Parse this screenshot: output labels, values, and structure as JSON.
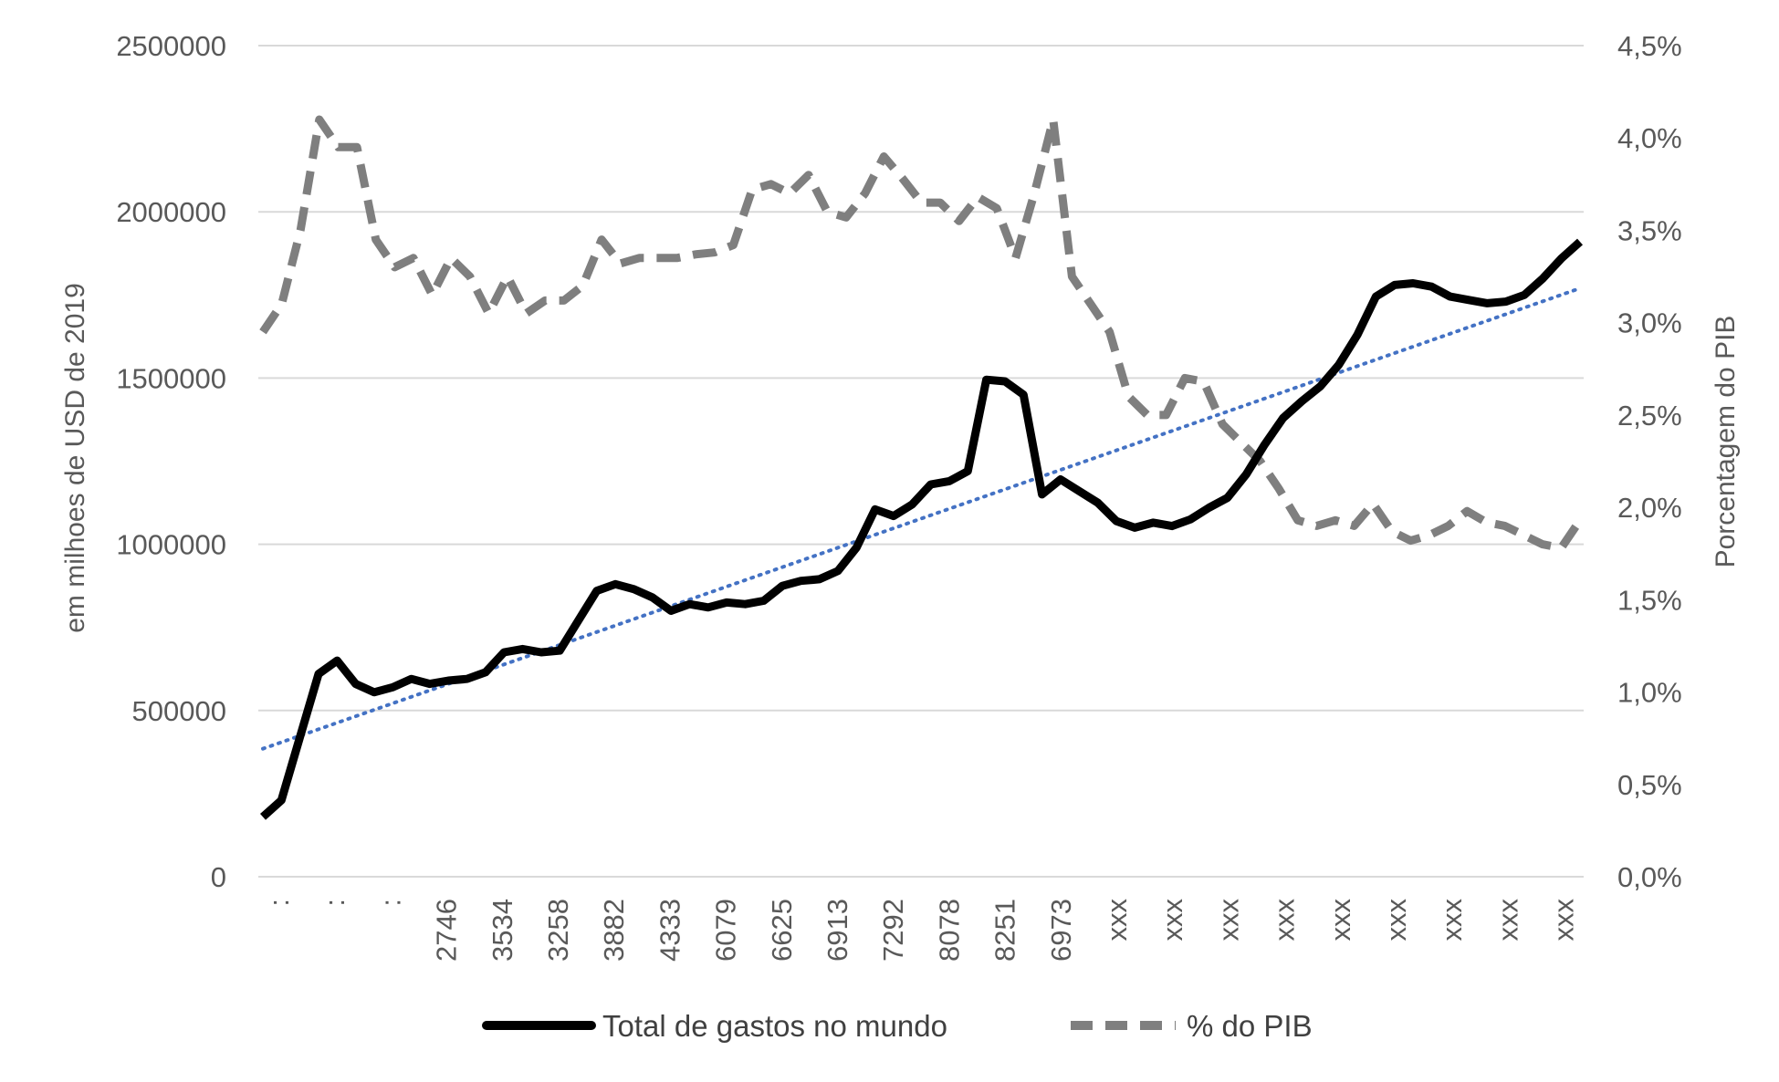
{
  "chart_data": {
    "type": "line",
    "ylabel_left": "em milhoes de USD de 2019",
    "ylabel_right": "Porcentagem do PIB",
    "y_left": {
      "min": 0,
      "max": 2500000,
      "ticks": [
        "0",
        "500000",
        "1000000",
        "1500000",
        "2000000",
        "2500000"
      ]
    },
    "y_right": {
      "min": 0,
      "max": 4.5,
      "ticks": [
        "0,0%",
        "0,5%",
        "1,0%",
        "1,5%",
        "2,0%",
        "2,5%",
        "3,0%",
        "3,5%",
        "4,0%",
        "4,5%"
      ]
    },
    "x_tick_labels": [
      ":",
      ":",
      ":",
      "2746",
      "3534",
      "3258",
      "3882",
      "4333",
      "6079",
      "6625",
      "6913",
      "7292",
      "8078",
      "8251",
      "6973",
      "xxx",
      "xxx",
      "xxx",
      "xxx",
      "xxx",
      "xxx",
      "xxx",
      "xxx",
      "xxx"
    ],
    "legend": {
      "position": "bottom",
      "entries": [
        "Total de gastos no mundo",
        "% do PIB"
      ]
    },
    "grid": "horizontal",
    "series": [
      {
        "name": "Total de gastos no mundo",
        "axis": "left",
        "style": "solid",
        "color": "#000000",
        "values": [
          180000,
          230000,
          420000,
          610000,
          650000,
          580000,
          555000,
          570000,
          595000,
          580000,
          590000,
          595000,
          615000,
          675000,
          685000,
          675000,
          680000,
          770000,
          860000,
          880000,
          865000,
          840000,
          800000,
          820000,
          810000,
          825000,
          820000,
          830000,
          875000,
          890000,
          895000,
          920000,
          990000,
          1105000,
          1085000,
          1120000,
          1180000,
          1190000,
          1220000,
          1495000,
          1490000,
          1450000,
          1150000,
          1195000,
          1160000,
          1125000,
          1070000,
          1050000,
          1065000,
          1055000,
          1075000,
          1110000,
          1140000,
          1210000,
          1300000,
          1380000,
          1430000,
          1475000,
          1540000,
          1630000,
          1745000,
          1780000,
          1785000,
          1775000,
          1745000,
          1735000,
          1725000,
          1730000,
          1750000,
          1800000,
          1860000,
          1910000
        ]
      },
      {
        "name": "% do PIB",
        "axis": "right",
        "style": "dashed",
        "color": "#7f7f7f",
        "values": [
          2.95,
          3.1,
          3.5,
          4.1,
          3.95,
          3.95,
          3.45,
          3.3,
          3.35,
          3.15,
          3.35,
          3.25,
          3.05,
          3.25,
          3.05,
          3.12,
          3.12,
          3.2,
          3.45,
          3.32,
          3.35,
          3.35,
          3.35,
          3.37,
          3.38,
          3.42,
          3.72,
          3.75,
          3.7,
          3.8,
          3.6,
          3.57,
          3.7,
          3.9,
          3.78,
          3.65,
          3.65,
          3.55,
          3.68,
          3.62,
          3.35,
          3.7,
          4.1,
          3.25,
          3.1,
          2.95,
          2.6,
          2.5,
          2.5,
          2.7,
          2.68,
          2.45,
          2.35,
          2.25,
          2.1,
          1.93,
          1.9,
          1.93,
          1.9,
          2.02,
          1.87,
          1.82,
          1.85,
          1.9,
          1.98,
          1.92,
          1.9,
          1.85,
          1.8,
          1.78,
          1.93
        ]
      },
      {
        "name": "",
        "axis": "left",
        "style": "dotted",
        "trendline": true,
        "color": "#4472c4",
        "values": [
          385000,
          1770000
        ]
      }
    ]
  }
}
